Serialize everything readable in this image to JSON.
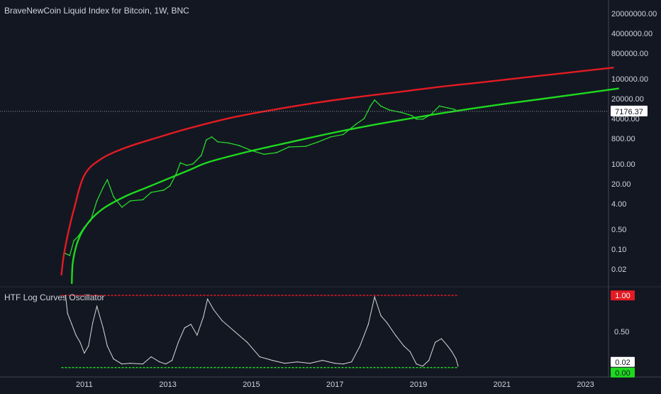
{
  "header": {
    "title": "BraveNewCoin Liquid Index for Bitcoin, 1W, BNC"
  },
  "oscillator": {
    "title": "HTF Log Curves Oscillator"
  },
  "colors": {
    "background": "#131722",
    "upper_curve": "#e31b23",
    "lower_curve": "#1ed91e",
    "price": "#26d92a",
    "oscillator_line": "#d9d9d9",
    "text": "#d1d4dc"
  },
  "chart_data": [
    {
      "type": "line",
      "title": "BraveNewCoin Liquid Index for Bitcoin, 1W, BNC",
      "y_scale": "log",
      "ylim": [
        0.005,
        60000000
      ],
      "xlim": [
        2010.0,
        2023.5
      ],
      "y_tick_labels": [
        "20000000.00",
        "4000000.00",
        "800000.00",
        "100000.00",
        "20000.00",
        "4000.00",
        "800.00",
        "100.00",
        "20.00",
        "4.00",
        "0.50",
        "0.10",
        "0.02"
      ],
      "y_tick_values": [
        20000000,
        4000000,
        800000,
        100000,
        20000,
        4000,
        800,
        100,
        20,
        4,
        0.5,
        0.1,
        0.02
      ],
      "last_price_label": "7176.37",
      "last_price": 7176.37,
      "series": [
        {
          "key": "upper",
          "x": [
            2010.45,
            2010.5,
            2010.6,
            2010.75,
            2011.0,
            2011.4,
            2012.0,
            2012.8,
            2013.5,
            2014.5,
            2015.5,
            2016.5,
            2017.5,
            2018.5,
            2019.5,
            2020.5,
            2021.5,
            2022.5,
            2023.68
          ],
          "y": [
            0.012,
            0.05,
            0.3,
            2.5,
            40,
            150,
            380,
            900,
            1800,
            4200,
            8000,
            14000,
            22500,
            34000,
            52000,
            75000,
            110000,
            160000,
            250000
          ]
        },
        {
          "key": "lower",
          "x": [
            2010.7,
            2010.72,
            2010.8,
            2010.9,
            2011.0,
            2011.2,
            2011.5,
            2012.0,
            2012.5,
            2013.0,
            2013.5,
            2014.0,
            2015.0,
            2016.0,
            2017.0,
            2018.0,
            2019.0,
            2020.0,
            2021.0,
            2022.0,
            2023.8
          ],
          "y": [
            0.006,
            0.03,
            0.12,
            0.3,
            0.55,
            1.3,
            3,
            7.5,
            15,
            30,
            60,
            120,
            290,
            620,
            1300,
            2500,
            4500,
            7800,
            12800,
            20000,
            46000
          ]
        },
        {
          "key": "price",
          "x": [
            2010.55,
            2010.65,
            2010.75,
            2010.85,
            2011.0,
            2011.15,
            2011.3,
            2011.45,
            2011.55,
            2011.7,
            2011.9,
            2012.1,
            2012.4,
            2012.6,
            2012.9,
            2013.05,
            2013.2,
            2013.3,
            2013.45,
            2013.6,
            2013.8,
            2013.92,
            2014.05,
            2014.2,
            2014.45,
            2014.7,
            2015.0,
            2015.3,
            2015.6,
            2015.9,
            2016.3,
            2016.6,
            2016.9,
            2017.2,
            2017.5,
            2017.7,
            2017.85,
            2017.95,
            2018.1,
            2018.3,
            2018.6,
            2018.85,
            2018.95,
            2019.1,
            2019.3,
            2019.5,
            2019.7,
            2019.85,
            2019.95
          ],
          "y": [
            0.07,
            0.06,
            0.2,
            0.28,
            0.6,
            1,
            5,
            15,
            28,
            7,
            3,
            5,
            5.5,
            10,
            12,
            17,
            45,
            110,
            90,
            100,
            200,
            700,
            900,
            600,
            550,
            450,
            300,
            220,
            250,
            400,
            420,
            600,
            900,
            1100,
            2500,
            4000,
            11000,
            18000,
            11000,
            8000,
            6500,
            5000,
            3800,
            3800,
            5500,
            11000,
            9500,
            8500,
            7176.37
          ]
        }
      ]
    },
    {
      "type": "line",
      "title": "HTF Log Curves Oscillator",
      "ylim": [
        -0.12,
        1.08
      ],
      "y_tick_labels": [
        "0.50"
      ],
      "y_tick_values": [
        0.5
      ],
      "badges": [
        {
          "label": "1.00",
          "value": 1.0,
          "color": "#e31b23",
          "text_color": "#ffffff"
        },
        {
          "label": "0.02",
          "value": 0.02,
          "color": "#ffffff",
          "text_color": "#131722"
        },
        {
          "label": "0.00",
          "value": 0.0,
          "color": "#1ed91e",
          "text_color": "#131722"
        }
      ],
      "x_tick_labels": [
        "2011",
        "2013",
        "2015",
        "2017",
        "2019",
        "2021",
        "2023"
      ],
      "x_tick_values": [
        2011,
        2013,
        2015,
        2017,
        2019,
        2021,
        2023
      ],
      "series": [
        {
          "key": "upper_band",
          "x": [
            2010.45,
            2019.95
          ],
          "y": [
            1.0,
            1.0
          ]
        },
        {
          "key": "lower_band",
          "x": [
            2010.45,
            2019.95
          ],
          "y": [
            0.0,
            0.0
          ]
        },
        {
          "key": "oscillator",
          "x": [
            2010.55,
            2010.6,
            2010.7,
            2010.8,
            2010.9,
            2011.0,
            2011.1,
            2011.2,
            2011.3,
            2011.45,
            2011.55,
            2011.7,
            2011.9,
            2012.1,
            2012.4,
            2012.6,
            2012.8,
            2012.95,
            2013.1,
            2013.25,
            2013.4,
            2013.55,
            2013.7,
            2013.85,
            2013.95,
            2014.1,
            2014.3,
            2014.6,
            2014.9,
            2015.2,
            2015.5,
            2015.8,
            2016.1,
            2016.4,
            2016.7,
            2017.0,
            2017.2,
            2017.4,
            2017.6,
            2017.8,
            2017.95,
            2018.1,
            2018.25,
            2018.45,
            2018.65,
            2018.8,
            2018.95,
            2019.1,
            2019.25,
            2019.4,
            2019.55,
            2019.7,
            2019.8,
            2019.9,
            2019.95
          ],
          "y": [
            1.0,
            0.75,
            0.6,
            0.45,
            0.35,
            0.2,
            0.3,
            0.62,
            0.85,
            0.55,
            0.3,
            0.12,
            0.05,
            0.06,
            0.05,
            0.15,
            0.08,
            0.05,
            0.1,
            0.35,
            0.55,
            0.6,
            0.45,
            0.7,
            0.95,
            0.8,
            0.65,
            0.5,
            0.35,
            0.15,
            0.1,
            0.06,
            0.08,
            0.06,
            0.1,
            0.06,
            0.05,
            0.08,
            0.3,
            0.6,
            0.98,
            0.72,
            0.62,
            0.45,
            0.3,
            0.22,
            0.05,
            0.02,
            0.1,
            0.35,
            0.4,
            0.3,
            0.22,
            0.12,
            0.02
          ]
        }
      ]
    }
  ]
}
